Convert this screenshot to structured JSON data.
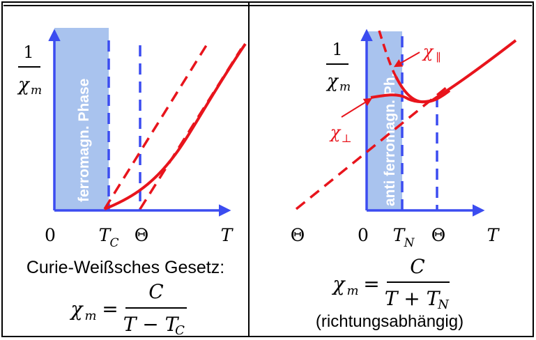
{
  "left_panel": {
    "phase_label": "ferromagn. Phase",
    "y_axis": {
      "numerator": "1",
      "denominator": "χ",
      "denominator_sub": "m"
    },
    "x_ticks": {
      "zero": "0",
      "tc_main": "T",
      "tc_sub": "C",
      "theta": "Θ",
      "t": "T"
    },
    "law_title": "Curie-Weißsches Gesetz:",
    "formula": {
      "lhs": "χ",
      "lhs_sub": "m",
      "equals": "=",
      "numerator": "C",
      "denominator": "T − T",
      "denominator_sub": "C"
    }
  },
  "right_panel": {
    "phase_label": "anti ferromagn. Ph.",
    "y_axis": {
      "numerator": "1",
      "denominator": "χ",
      "denominator_sub": "m"
    },
    "label_parallel": "χ",
    "label_parallel_sub": "∥",
    "label_perp": "χ",
    "label_perp_sub": "⊥",
    "x_ticks": {
      "theta_neg": "Θ",
      "zero": "0",
      "tn_main": "T",
      "tn_sub": "N",
      "theta": "Θ",
      "t": "T"
    },
    "formula": {
      "lhs": "χ",
      "lhs_sub": "m",
      "equals": "=",
      "numerator": "C",
      "denominator": "T + T",
      "denominator_sub": "N"
    },
    "note": "(richtungsabhängig)"
  },
  "colors": {
    "axis": "#3b4cf0",
    "curve": "#e8141c",
    "phase_fill": "#a9c3ee",
    "phase_text": "#ffffff",
    "border": "#000000"
  }
}
